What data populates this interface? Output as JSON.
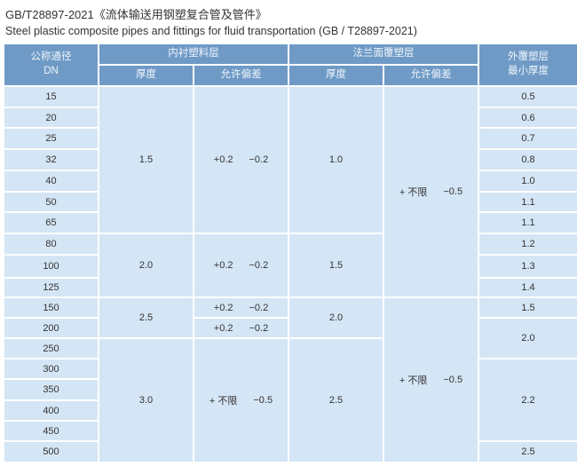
{
  "title": "GB/T28897-2021《流体输送用钢塑复合管及管件》",
  "subtitle": "Steel plastic composite pipes and fittings for fluid transportation (GB / T28897-2021)",
  "header": {
    "dn": "公称通径",
    "dn2": "DN",
    "lining": "内衬塑料层",
    "flange": "法兰面覆塑层",
    "outer": "外覆塑层",
    "outer2": "最小厚度",
    "thickness": "厚度",
    "tolerance": "允许偏差"
  },
  "dn": [
    "15",
    "20",
    "25",
    "32",
    "40",
    "50",
    "65",
    "80",
    "100",
    "125",
    "150",
    "200",
    "250",
    "300",
    "350",
    "400",
    "450",
    "500"
  ],
  "lining_thickness": [
    "1.5",
    "2.0",
    "2.5",
    "3.0"
  ],
  "lining_tol": [
    [
      "+0.2",
      "−0.2"
    ],
    [
      "+0.2",
      "−0.2"
    ],
    [
      "+0.2",
      "−0.2"
    ],
    [
      "+0.2",
      "−0.2"
    ],
    [
      "+ 不限",
      "−0.5"
    ]
  ],
  "flange_thickness": [
    "1.0",
    "1.5",
    "2.0",
    "2.5"
  ],
  "flange_tol": [
    [
      "+ 不限",
      "−0.5"
    ],
    [
      "+ 不限",
      "−0.5"
    ]
  ],
  "outer": [
    "0.5",
    "0.6",
    "0.7",
    "0.8",
    "1.0",
    "1.1",
    "1.1",
    "1.2",
    "1.3",
    "1.4",
    "1.5",
    "2.0",
    "2.2",
    "2.5"
  ]
}
